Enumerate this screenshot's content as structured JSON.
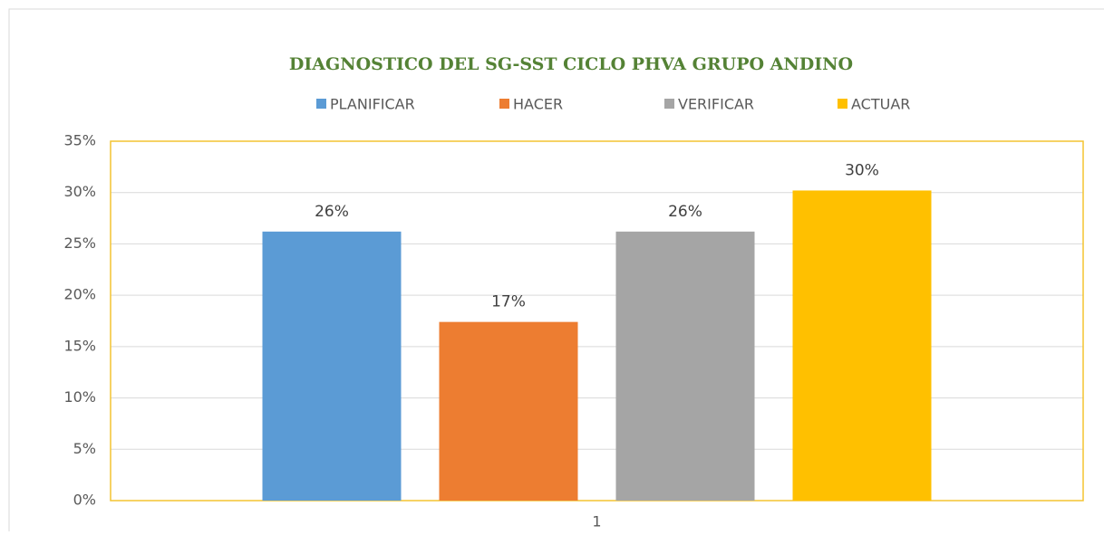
{
  "chart_data": {
    "type": "bar",
    "title": "DIAGNOSTICO DEL SG-SST CICLO PHVA GRUPO ANDINO",
    "categories": [
      "1"
    ],
    "series": [
      {
        "name": "PLANIFICAR",
        "color": "#5b9bd5",
        "values": [
          26.2
        ],
        "value_labels": [
          "26%"
        ]
      },
      {
        "name": "HACER",
        "color": "#ed7d31",
        "values": [
          17.4
        ],
        "value_labels": [
          "17%"
        ]
      },
      {
        "name": "VERIFICAR",
        "color": "#a5a5a5",
        "values": [
          26.2
        ],
        "value_labels": [
          "26%"
        ]
      },
      {
        "name": "ACTUAR",
        "color": "#ffc000",
        "values": [
          30.2
        ],
        "value_labels": [
          "30%"
        ]
      }
    ],
    "ylim": [
      0,
      35
    ],
    "yticks": [
      {
        "value": 0,
        "label": "0%"
      },
      {
        "value": 5,
        "label": "5%"
      },
      {
        "value": 10,
        "label": "10%"
      },
      {
        "value": 15,
        "label": "15%"
      },
      {
        "value": 20,
        "label": "20%"
      },
      {
        "value": 25,
        "label": "25%"
      },
      {
        "value": 30,
        "label": "30%"
      },
      {
        "value": 35,
        "label": "35%"
      }
    ],
    "grid": true,
    "legend": "top"
  }
}
